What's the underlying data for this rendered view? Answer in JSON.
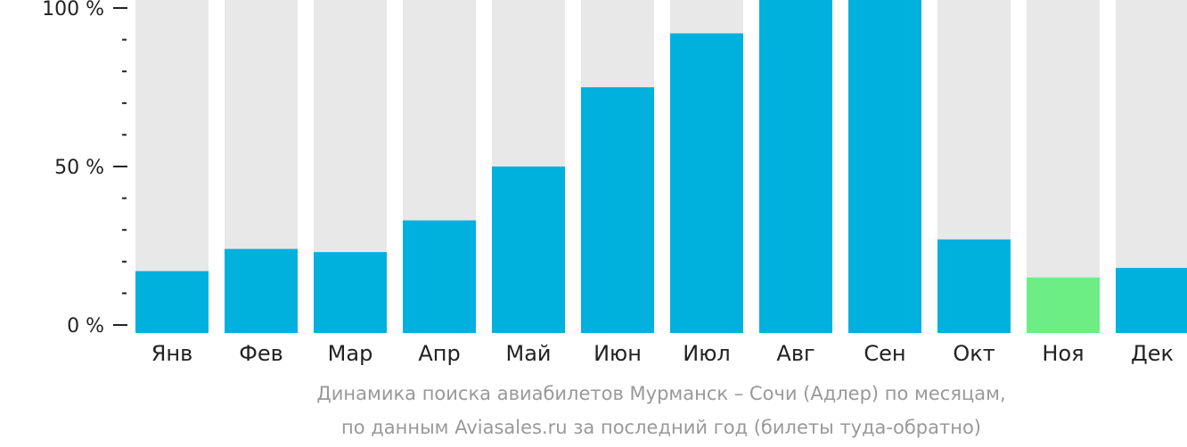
{
  "chart_data": {
    "type": "bar",
    "categories": [
      "Янв",
      "Фев",
      "Мар",
      "Апр",
      "Май",
      "Июн",
      "Июл",
      "Авг",
      "Сен",
      "Окт",
      "Ноя",
      "Дек"
    ],
    "values": [
      17,
      24,
      23,
      33,
      50,
      75,
      92,
      104,
      103,
      27,
      15,
      18
    ],
    "highlight_index": 10,
    "ylim": [
      0,
      100
    ],
    "y_ticks": [
      {
        "value": 0,
        "label": "0 %"
      },
      {
        "value": 50,
        "label": "50 %"
      },
      {
        "value": 100,
        "label": "100 %"
      }
    ],
    "minor_tick_step": 10,
    "colors": {
      "bar": "#00b0dd",
      "highlight": "#6cee84",
      "background_bar": "#e8e8e8",
      "axis": "#222222"
    }
  },
  "caption": {
    "line1": "Динамика поиска авиабилетов Мурманск – Сочи (Адлер) по месяцам,",
    "line2": "по данным Aviasales.ru за последний год (билеты туда-обратно)"
  }
}
